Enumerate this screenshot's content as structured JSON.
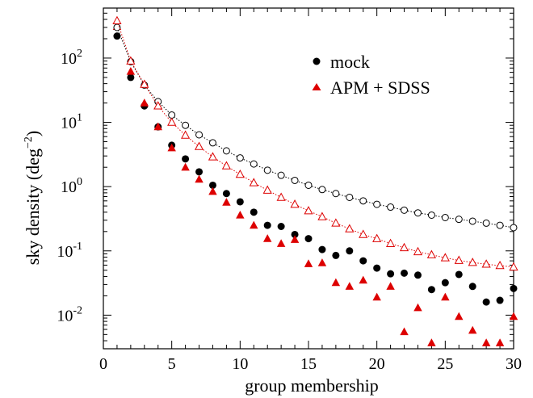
{
  "chart_data": {
    "type": "scatter",
    "xlabel": "group membership",
    "ylabel_main": "sky density (deg",
    "ylabel_exp": "−2",
    "ylabel_close": ")",
    "xlim": [
      0,
      30
    ],
    "ylim": [
      0.003,
      600
    ],
    "yscale": "log",
    "grid": false,
    "legend_position": "top-right",
    "x_ticks": [
      0,
      5,
      10,
      15,
      20,
      25,
      30
    ],
    "x_tick_labels": [
      "0",
      "5",
      "10",
      "15",
      "20",
      "25",
      "30"
    ],
    "y_ticks": [
      {
        "value": 100,
        "base": "10",
        "exp": "2"
      },
      {
        "value": 10,
        "base": "10",
        "exp": "1"
      },
      {
        "value": 1,
        "base": "10",
        "exp": "0"
      },
      {
        "value": 0.1,
        "base": "10",
        "exp": "-1"
      },
      {
        "value": 0.01,
        "base": "10",
        "exp": "-2"
      }
    ],
    "colors": {
      "mock": "#000000",
      "apm": "#dd0000"
    },
    "series": [
      {
        "name": "mock",
        "marker": "filled-circle",
        "color": "#000000",
        "x": [
          1,
          2,
          3,
          4,
          5,
          6,
          7,
          8,
          9,
          10,
          11,
          12,
          13,
          14,
          15,
          16,
          17,
          18,
          19,
          20,
          21,
          22,
          23,
          24,
          25,
          26,
          27,
          28,
          29,
          30
        ],
        "y": [
          220,
          50,
          18,
          8.5,
          4.4,
          2.7,
          1.7,
          1.05,
          0.78,
          0.58,
          0.4,
          0.25,
          0.24,
          0.18,
          0.155,
          0.105,
          0.085,
          0.1,
          0.07,
          0.054,
          0.044,
          0.045,
          0.042,
          0.025,
          0.032,
          0.043,
          0.028,
          0.016,
          0.017,
          0.026
        ]
      },
      {
        "name": "APM + SDSS",
        "marker": "filled-triangle",
        "color": "#dd0000",
        "x": [
          1,
          2,
          3,
          4,
          5,
          6,
          7,
          8,
          9,
          10,
          11,
          12,
          13,
          14,
          15,
          16,
          17,
          18,
          19,
          20,
          21,
          22,
          23,
          24,
          25,
          26,
          27,
          28,
          29,
          30
        ],
        "y": [
          310,
          62,
          20,
          8.5,
          4.0,
          2.0,
          1.3,
          0.84,
          0.57,
          0.36,
          0.25,
          0.155,
          0.13,
          0.15,
          0.063,
          0.065,
          0.032,
          0.028,
          0.035,
          0.019,
          0.028,
          0.0055,
          0.013,
          0.0037,
          0.019,
          0.0095,
          0.0058,
          0.0037,
          0.0037,
          0.0095
        ]
      },
      {
        "marker": "open-circle-dotted-line",
        "color": "#000000",
        "x": [
          1,
          2,
          3,
          4,
          5,
          6,
          7,
          8,
          9,
          10,
          11,
          12,
          13,
          14,
          15,
          16,
          17,
          18,
          19,
          20,
          21,
          22,
          23,
          24,
          25,
          26,
          27,
          28,
          29,
          30
        ],
        "y": [
          300,
          88,
          38,
          21,
          13,
          9,
          6.4,
          4.8,
          3.6,
          2.8,
          2.25,
          1.8,
          1.5,
          1.25,
          1.05,
          0.9,
          0.78,
          0.68,
          0.6,
          0.53,
          0.48,
          0.43,
          0.39,
          0.36,
          0.33,
          0.31,
          0.29,
          0.27,
          0.25,
          0.23
        ]
      },
      {
        "marker": "open-triangle-dotted-line",
        "color": "#dd0000",
        "x": [
          1,
          2,
          3,
          4,
          5,
          6,
          7,
          8,
          9,
          10,
          11,
          12,
          13,
          14,
          15,
          16,
          17,
          18,
          19,
          20,
          21,
          22,
          23,
          24,
          25,
          26,
          27,
          28,
          29,
          30
        ],
        "y": [
          380,
          90,
          39,
          18,
          10,
          6.3,
          4.2,
          2.9,
          2.1,
          1.55,
          1.15,
          0.88,
          0.68,
          0.53,
          0.42,
          0.34,
          0.27,
          0.22,
          0.18,
          0.155,
          0.13,
          0.112,
          0.097,
          0.087,
          0.078,
          0.071,
          0.066,
          0.062,
          0.059,
          0.056
        ]
      }
    ]
  }
}
